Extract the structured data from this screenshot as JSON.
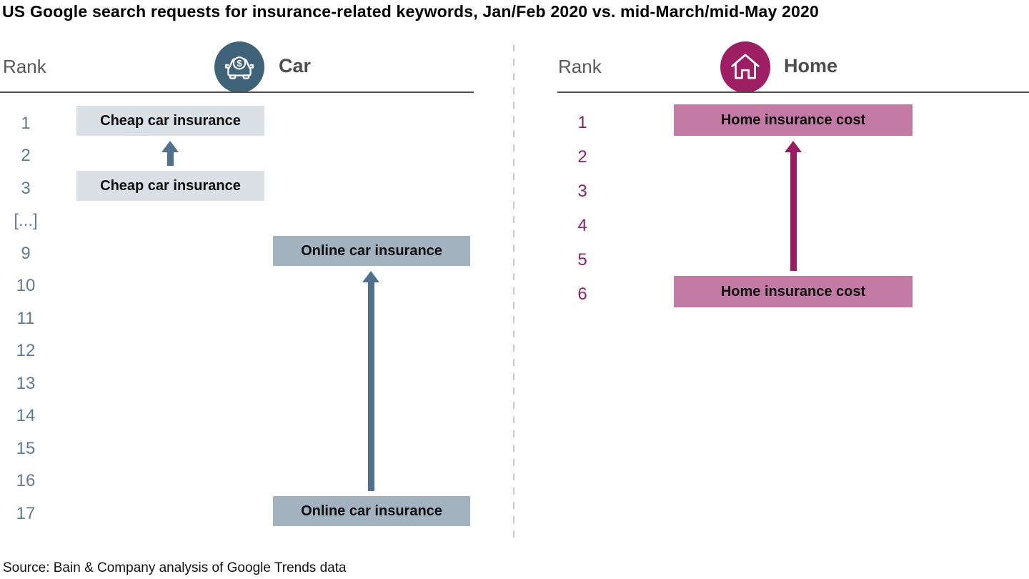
{
  "title": "US Google search requests for insurance-related keywords, Jan/Feb 2020 vs. mid-March/mid-May 2020",
  "source": "Source: Bain & Company analysis of Google Trends data",
  "panels": [
    {
      "id": "car",
      "rank_header": "Rank",
      "label": "Car",
      "icon": "car-dollar-icon",
      "icon_bg": "#3e6379",
      "rank_color": "#5d7b96",
      "ranks": [
        "1",
        "2",
        "3",
        "[...]",
        "9",
        "10",
        "11",
        "12",
        "13",
        "14",
        "15",
        "16",
        "17"
      ],
      "keywords": [
        {
          "keyword": "Cheap car insurance",
          "rank_late": "1",
          "rank_early": "3",
          "box_color": "#d9e0e6",
          "arrow_color": "#50718e"
        },
        {
          "keyword": "Online car insurance",
          "rank_late": "9",
          "rank_early": "17",
          "box_color": "#a3b2bf",
          "arrow_color": "#50718e"
        }
      ]
    },
    {
      "id": "home",
      "rank_header": "Rank",
      "label": "Home",
      "icon": "home-icon",
      "icon_bg": "#9e1e63",
      "rank_color": "#8c2264",
      "ranks": [
        "1",
        "2",
        "3",
        "4",
        "5",
        "6"
      ],
      "keywords": [
        {
          "keyword": "Home insurance cost",
          "rank_late": "1",
          "rank_early": "6",
          "box_color": "#c37aa4",
          "arrow_color": "#9a1b62"
        }
      ]
    }
  ],
  "chart_data": {
    "type": "table",
    "title": "US Google search requests for insurance-related keywords, Jan/Feb 2020 vs. mid-March/mid-May 2020",
    "description": "Rank-change chart: each keyword shown at its Jan/Feb 2020 rank (bottom box) with an upward arrow to its mid-March/mid-May 2020 rank (top box).",
    "legend_position": "none",
    "grid": false,
    "panels": [
      {
        "category": "Car",
        "rank_axis": [
          "1",
          "2",
          "3",
          "[...]",
          "9",
          "10",
          "11",
          "12",
          "13",
          "14",
          "15",
          "16",
          "17"
        ],
        "keywords": [
          {
            "keyword": "Cheap car insurance",
            "rank_jan_feb_2020": 3,
            "rank_mid_march_mid_may_2020": 1
          },
          {
            "keyword": "Online car insurance",
            "rank_jan_feb_2020": 17,
            "rank_mid_march_mid_may_2020": 9
          }
        ]
      },
      {
        "category": "Home",
        "rank_axis": [
          "1",
          "2",
          "3",
          "4",
          "5",
          "6"
        ],
        "keywords": [
          {
            "keyword": "Home insurance cost",
            "rank_jan_feb_2020": 6,
            "rank_mid_march_mid_may_2020": 1
          }
        ]
      }
    ],
    "source": "Source: Bain & Company analysis of Google Trends data"
  }
}
